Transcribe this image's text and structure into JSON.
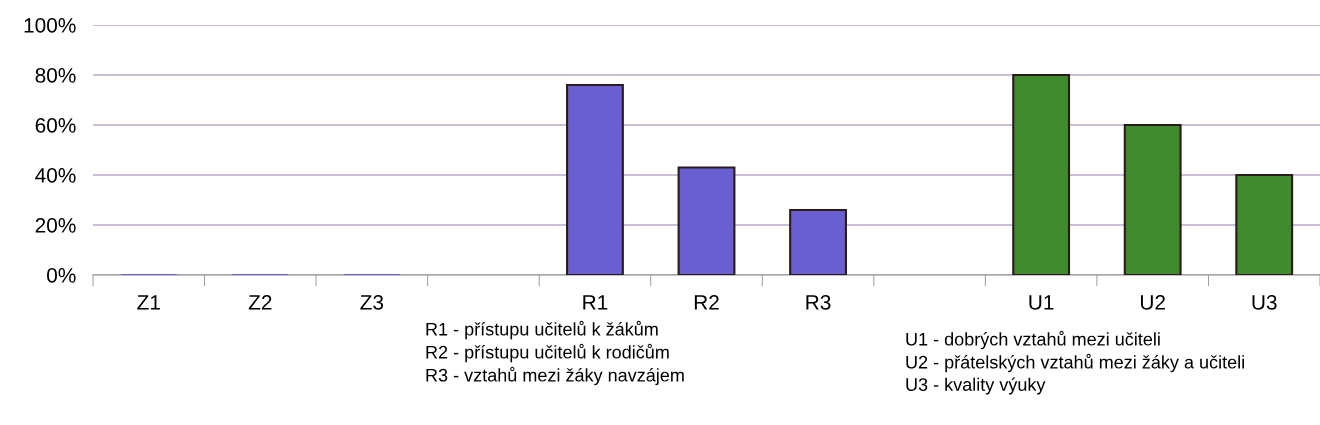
{
  "chart_data": {
    "type": "bar",
    "categories": [
      "Z1",
      "Z2",
      "Z3",
      null,
      "R1",
      "R2",
      "R3",
      null,
      "U1",
      "U2",
      "U3"
    ],
    "values": [
      0,
      0,
      0,
      null,
      76,
      43,
      26,
      null,
      80,
      60,
      40
    ],
    "colors": [
      "#6a5fd0",
      "#6a5fd0",
      "#6a5fd0",
      "#6a5fd0",
      "#6a5fd0",
      "#6a5fd0",
      "#6a5fd0",
      "#3e8a2c",
      "#3e8a2c",
      "#3e8a2c",
      "#3e8a2c"
    ],
    "ylim": [
      0,
      100
    ],
    "yticks": [
      {
        "value": 0,
        "label": "0%"
      },
      {
        "value": 20,
        "label": "20%"
      },
      {
        "value": 40,
        "label": "40%"
      },
      {
        "value": 60,
        "label": "60%"
      },
      {
        "value": 80,
        "label": "80%"
      },
      {
        "value": 100,
        "label": "100%"
      }
    ],
    "grid": "y",
    "annotations": [
      "R1 - přístupu učitelů k žákům",
      "R2 - přístupu učitelů k rodičům",
      "R3 - vztahů mezi žáky navzájem",
      "U1 - dobrých vztahů mezi učiteli",
      "U2 - přátelských vztahů mezi žáky a učiteli",
      "U3 - kvality výuky"
    ]
  }
}
